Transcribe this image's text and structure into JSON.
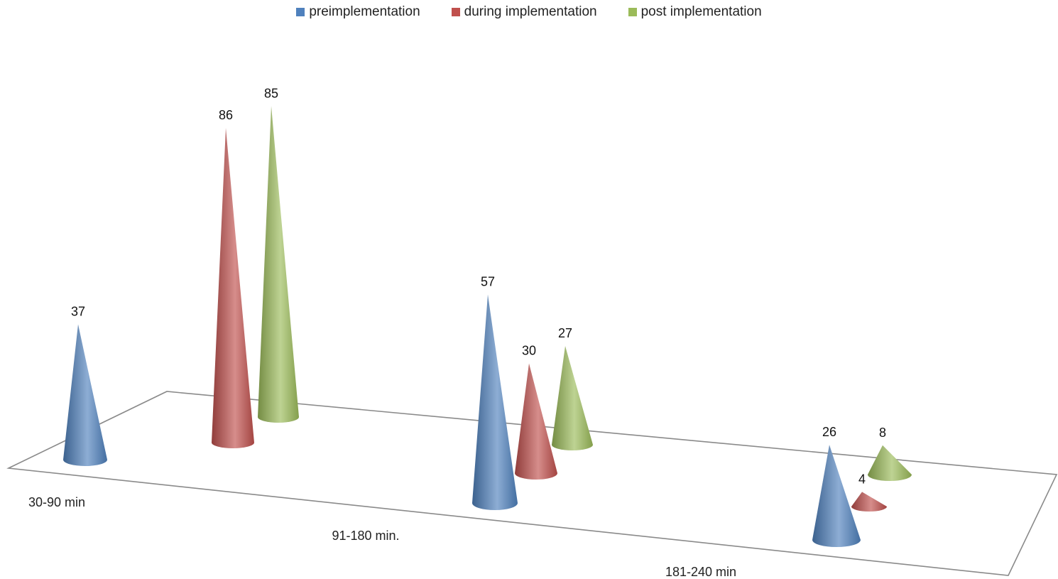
{
  "chart_data": {
    "type": "bar",
    "title": "",
    "xlabel": "",
    "ylabel": "",
    "categories": [
      "30-90 min",
      "91-180 min.",
      "181-240 min"
    ],
    "series": [
      {
        "name": "preimplementation",
        "color": "#4F81BD",
        "values": [
          37,
          57,
          26
        ]
      },
      {
        "name": "during implementation",
        "color": "#C0504D",
        "values": [
          86,
          30,
          4
        ]
      },
      {
        "name": "post implementation",
        "color": "#9BBB59",
        "values": [
          85,
          27,
          8
        ]
      }
    ],
    "legend_position": "top-center",
    "grid": false,
    "shape": "cone"
  }
}
